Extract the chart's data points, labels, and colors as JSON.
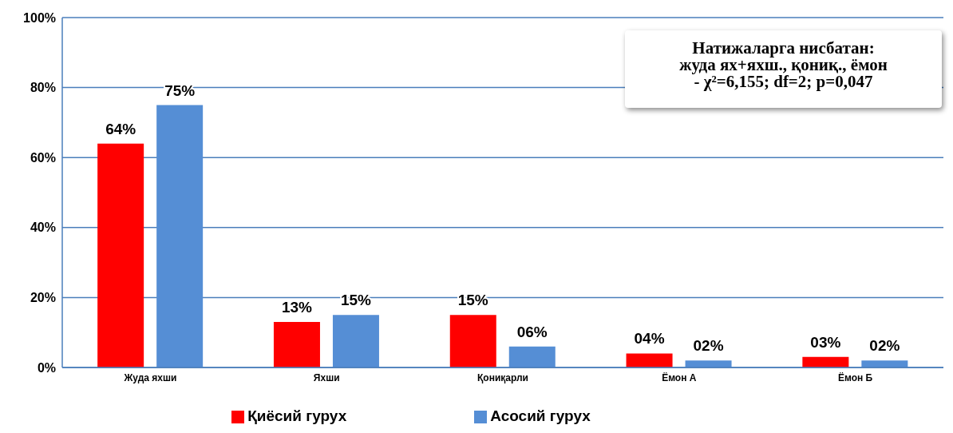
{
  "chart_data": {
    "type": "bar",
    "categories": [
      "Жуда яхши",
      "Яхши",
      "Қониқарли",
      "Ёмон А",
      "Ёмон Б"
    ],
    "series": [
      {
        "name": "Қиёсий гурух",
        "color": "#ff0000",
        "values": [
          64,
          13,
          15,
          4,
          3
        ],
        "value_labels": [
          "64%",
          "13%",
          "15%",
          "04%",
          "03%"
        ]
      },
      {
        "name": "Асосий гурух",
        "color": "#558ed5",
        "values": [
          75,
          15,
          6,
          2,
          2
        ],
        "value_labels": [
          "75%",
          "15%",
          "06%",
          "02%",
          "02%"
        ]
      }
    ],
    "ylim": [
      0,
      100
    ],
    "yticks": [
      {
        "value": 0,
        "label": "0%"
      },
      {
        "value": 20,
        "label": "20%"
      },
      {
        "value": 40,
        "label": "40%"
      },
      {
        "value": 60,
        "label": "60%"
      },
      {
        "value": 80,
        "label": "80%"
      },
      {
        "value": 100,
        "label": "100%"
      }
    ],
    "grid": "y",
    "legend": "bottom",
    "annotations": [
      "Натижаларга нисбатан:\nжуда ях+яхш., қониқ., ёмон\n- χ²=6,155; df=2; p=0,047"
    ]
  }
}
